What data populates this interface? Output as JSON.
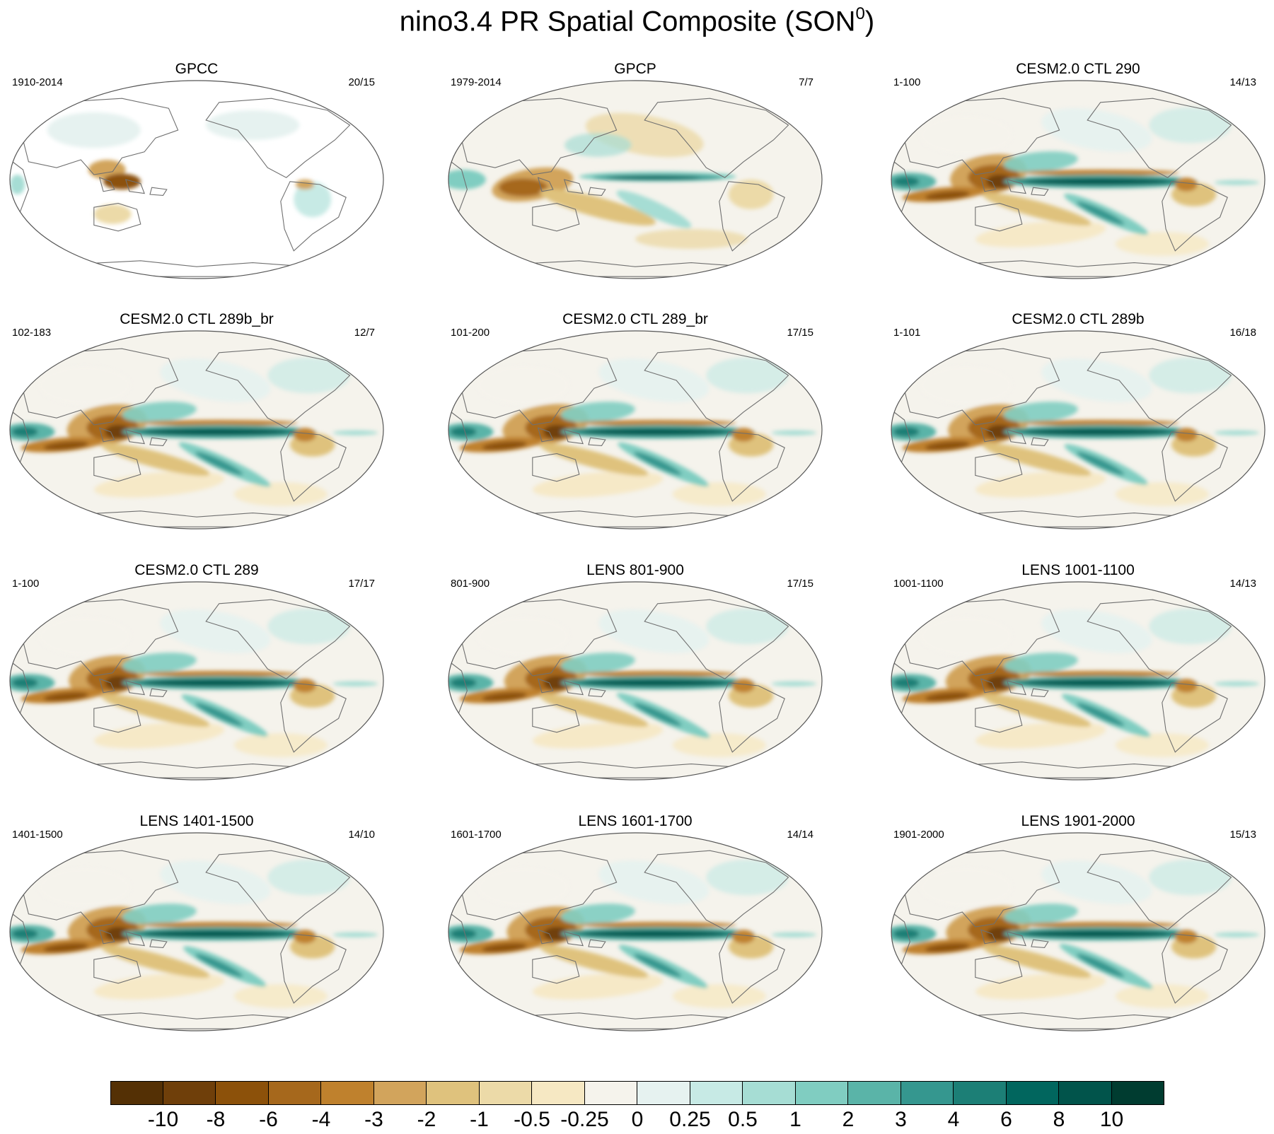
{
  "title": "nino3.4 PR Spatial Composite (SON",
  "title_sup": "0",
  "title_close": ")",
  "panels": [
    {
      "title": "GPCC",
      "years": "1910-2014",
      "ratio": "20/15",
      "style": "land"
    },
    {
      "title": "GPCP",
      "years": "1979-2014",
      "ratio": "7/7",
      "style": "obs"
    },
    {
      "title": "CESM2.0 CTL 290",
      "years": "1-100",
      "ratio": "14/13",
      "style": "model"
    },
    {
      "title": "CESM2.0 CTL 289b_br",
      "years": "102-183",
      "ratio": "12/7",
      "style": "model"
    },
    {
      "title": "CESM2.0 CTL 289_br",
      "years": "101-200",
      "ratio": "17/15",
      "style": "model"
    },
    {
      "title": "CESM2.0 CTL 289b",
      "years": "1-101",
      "ratio": "16/18",
      "style": "model"
    },
    {
      "title": "CESM2.0 CTL 289",
      "years": "1-100",
      "ratio": "17/17",
      "style": "model"
    },
    {
      "title": "LENS 801-900",
      "years": "801-900",
      "ratio": "17/15",
      "style": "model"
    },
    {
      "title": "LENS 1001-1100",
      "years": "1001-1100",
      "ratio": "14/13",
      "style": "model"
    },
    {
      "title": "LENS 1401-1500",
      "years": "1401-1500",
      "ratio": "14/10",
      "style": "model"
    },
    {
      "title": "LENS 1601-1700",
      "years": "1601-1700",
      "ratio": "14/14",
      "style": "model"
    },
    {
      "title": "LENS 1901-2000",
      "years": "1901-2000",
      "ratio": "15/13",
      "style": "model"
    }
  ],
  "colorbar": {
    "colors": [
      "#543005",
      "#6f3f0a",
      "#8c510a",
      "#a6681c",
      "#bf812d",
      "#d2a45c",
      "#dfc27d",
      "#ecdaa8",
      "#f6e8c3",
      "#f5f3ec",
      "#e6f2f0",
      "#c7eae5",
      "#a6ddd4",
      "#80cdc1",
      "#5ab4a8",
      "#35978f",
      "#1c7f76",
      "#01665e",
      "#01544b",
      "#003c30"
    ],
    "labels": [
      "-10",
      "-8",
      "-6",
      "-4",
      "-3",
      "-2",
      "-1",
      "-0.5",
      "-0.25",
      "0",
      "0.25",
      "0.5",
      "1",
      "2",
      "3",
      "4",
      "6",
      "8",
      "10"
    ]
  }
}
